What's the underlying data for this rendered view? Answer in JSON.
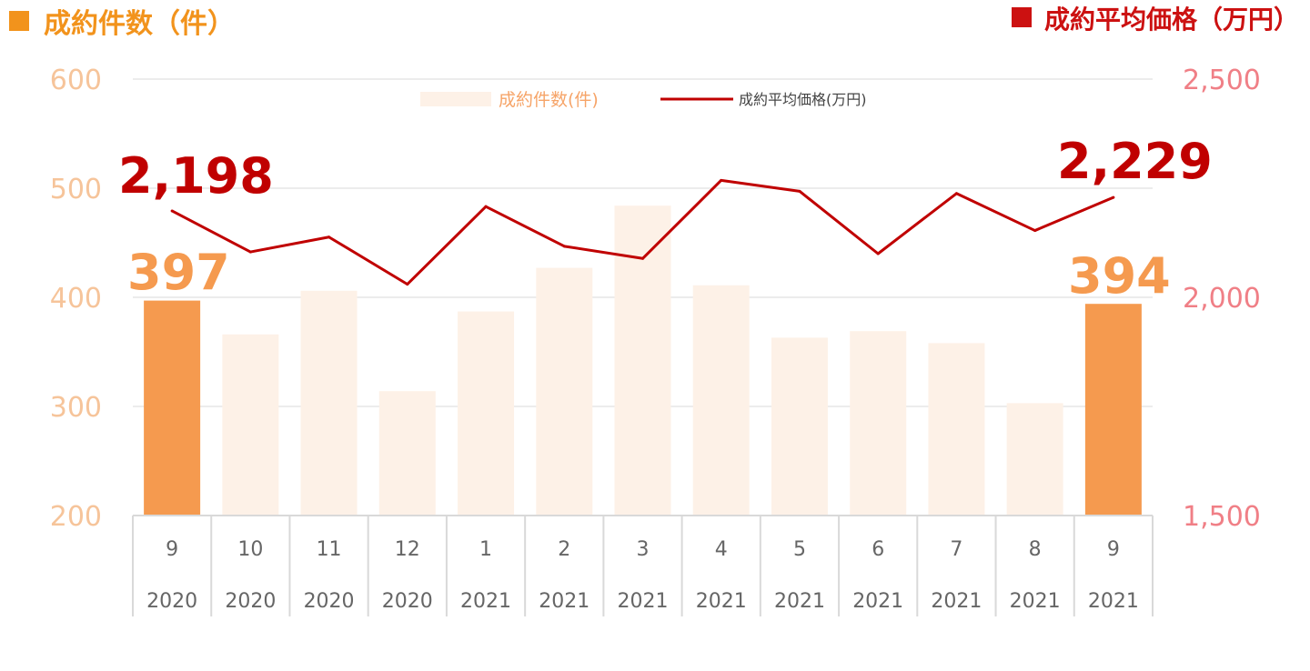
{
  "header": {
    "left_title": "成約件数（件）",
    "right_title": "成約平均価格（万円）"
  },
  "legend": {
    "bars_label": "成約件数(件)",
    "line_label": "成約平均価格(万円)"
  },
  "callouts": {
    "first_bar": "397",
    "last_bar": "394",
    "first_line": "2,198",
    "last_line": "2,229"
  },
  "chart_data": {
    "type": "bar",
    "categories": [
      {
        "month": "9",
        "year": "2020"
      },
      {
        "month": "10",
        "year": "2020"
      },
      {
        "month": "11",
        "year": "2020"
      },
      {
        "month": "12",
        "year": "2020"
      },
      {
        "month": "1",
        "year": "2021"
      },
      {
        "month": "2",
        "year": "2021"
      },
      {
        "month": "3",
        "year": "2021"
      },
      {
        "month": "4",
        "year": "2021"
      },
      {
        "month": "5",
        "year": "2021"
      },
      {
        "month": "6",
        "year": "2021"
      },
      {
        "month": "7",
        "year": "2021"
      },
      {
        "month": "8",
        "year": "2021"
      },
      {
        "month": "9",
        "year": "2021"
      }
    ],
    "series": [
      {
        "name": "成約件数(件)",
        "type": "bar",
        "axis": "left",
        "values": [
          397,
          366,
          406,
          314,
          387,
          427,
          484,
          411,
          363,
          369,
          358,
          303,
          394
        ]
      },
      {
        "name": "成約平均価格(万円)",
        "type": "line",
        "axis": "right",
        "values": [
          2198,
          2104,
          2138,
          2030,
          2208,
          2117,
          2089,
          2268,
          2243,
          2100,
          2238,
          2153,
          2229
        ]
      }
    ],
    "y_left": {
      "min": 200,
      "max": 600,
      "ticks": [
        "200",
        "300",
        "400",
        "500",
        "600"
      ]
    },
    "y_right": {
      "min": 1500,
      "max": 2500,
      "ticks": [
        "1,500",
        "2,000",
        "2,500"
      ]
    },
    "grid": true,
    "legend_position": "top-center",
    "colors": {
      "bar_highlight": "#f59a4f",
      "bar_normal": "#fdf1e7",
      "line": "#c00000",
      "grid": "#e6e6e6",
      "left_marker": "#f2931c",
      "right_marker": "#cc1111"
    }
  }
}
